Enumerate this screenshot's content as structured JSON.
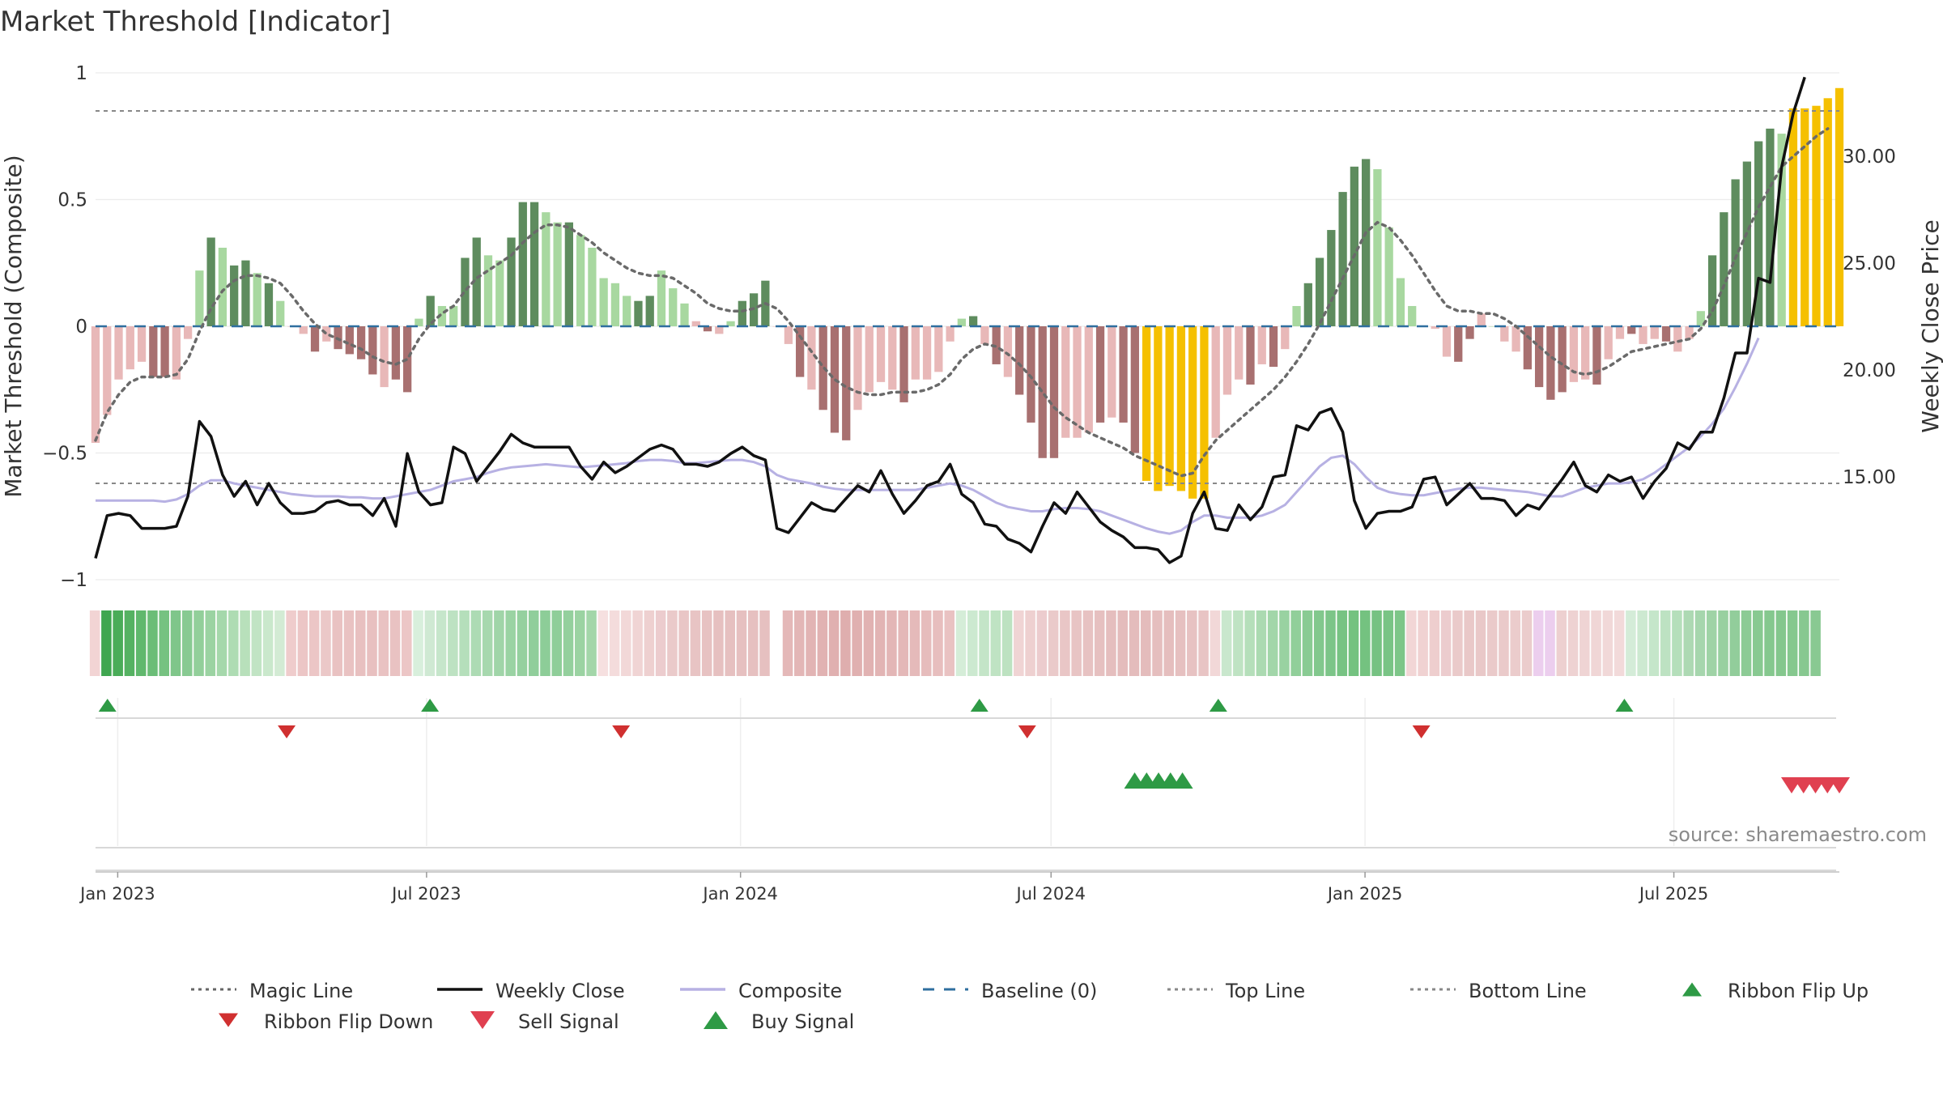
{
  "chart_data": {
    "type": "bar",
    "title": "Market Threshold [Indicator]",
    "ylabel": "Market Threshold (Composite)",
    "ylabel_right": "Weekly Close Price",
    "ylim": [
      -1,
      1
    ],
    "yticks": [
      1,
      0.5,
      0,
      -0.5,
      -1
    ],
    "ytick_labels": [
      "1",
      "0.5",
      "0",
      "−0.5",
      "−1"
    ],
    "ylim_right": [
      10.2,
      33.9
    ],
    "yticks_right": [
      30,
      25,
      20,
      15
    ],
    "ytick_labels_right": [
      "30.00",
      "25.00",
      "20.00",
      "15.00"
    ],
    "x_start": "2022-12-19",
    "x_end": "2025-10-06",
    "xticks": [
      "2023-01-01",
      "2023-07-01",
      "2024-01-01",
      "2024-07-01",
      "2025-01-01",
      "2025-07-01"
    ],
    "xtick_labels": [
      "Jan 2023",
      "Jul 2023",
      "Jan 2024",
      "Jul 2024",
      "Jan 2025",
      "Jul 2025"
    ],
    "top_line": 0.85,
    "bottom_line": -0.62,
    "grid": true,
    "legend_position": "bottom",
    "source_text": "source: sharemaestro.com",
    "legend": [
      {
        "label": "Magic Line",
        "style": "dotted",
        "color": "#666666"
      },
      {
        "label": "Weekly Close",
        "style": "line",
        "color": "#111111"
      },
      {
        "label": "Composite",
        "style": "line",
        "color": "#b7b1e3"
      },
      {
        "label": "Baseline (0)",
        "style": "dashed",
        "color": "#2f6f9f"
      },
      {
        "label": "Top Line",
        "style": "dotted",
        "color": "#888888"
      },
      {
        "label": "Bottom Line",
        "style": "dotted",
        "color": "#888888"
      },
      {
        "label": "Ribbon Flip Up",
        "style": "triangle-up",
        "color": "#2e9a45"
      },
      {
        "label": "Ribbon Flip Down",
        "style": "triangle-down",
        "color": "#d03030"
      },
      {
        "label": "Sell Signal",
        "style": "triangle-down-large",
        "color": "#e04050"
      },
      {
        "label": "Buy Signal",
        "style": "triangle-up-large",
        "color": "#2e9a45"
      }
    ],
    "composite": [
      -0.46,
      -0.35,
      -0.21,
      -0.17,
      -0.14,
      -0.2,
      -0.2,
      -0.21,
      -0.05,
      0.22,
      0.35,
      0.31,
      0.24,
      0.26,
      0.21,
      0.17,
      0.1,
      0.0,
      -0.03,
      -0.1,
      -0.06,
      -0.09,
      -0.11,
      -0.13,
      -0.19,
      -0.24,
      -0.21,
      -0.26,
      0.03,
      0.12,
      0.08,
      0.08,
      0.27,
      0.35,
      0.28,
      0.26,
      0.35,
      0.49,
      0.49,
      0.45,
      0.41,
      0.41,
      0.36,
      0.31,
      0.19,
      0.17,
      0.12,
      0.1,
      0.12,
      0.22,
      0.15,
      0.09,
      0.02,
      -0.02,
      -0.03,
      0.02,
      0.1,
      0.13,
      0.18,
      0.0,
      -0.07,
      -0.2,
      -0.25,
      -0.33,
      -0.42,
      -0.45,
      -0.33,
      -0.26,
      -0.22,
      -0.25,
      -0.3,
      -0.21,
      -0.21,
      -0.18,
      -0.06,
      0.03,
      0.04,
      -0.07,
      -0.15,
      -0.2,
      -0.27,
      -0.38,
      -0.52,
      -0.52,
      -0.44,
      -0.44,
      -0.42,
      -0.38,
      -0.36,
      -0.38,
      -0.5,
      -0.61,
      -0.65,
      -0.63,
      -0.65,
      -0.68,
      -0.68,
      -0.44,
      -0.27,
      -0.21,
      -0.23,
      -0.15,
      -0.16,
      -0.09,
      0.08,
      0.17,
      0.27,
      0.38,
      0.53,
      0.63,
      0.66,
      0.62,
      0.39,
      0.19,
      0.08,
      0.0,
      -0.01,
      -0.12,
      -0.14,
      -0.05,
      0.05,
      0.0,
      -0.06,
      -0.1,
      -0.17,
      -0.24,
      -0.29,
      -0.26,
      -0.22,
      -0.21,
      -0.23,
      -0.13,
      -0.05,
      -0.03,
      -0.07,
      -0.05,
      -0.06,
      -0.1,
      -0.05,
      0.06,
      0.28,
      0.45,
      0.58,
      0.65,
      0.73,
      0.78,
      0.76,
      0.86,
      0.86,
      0.87,
      0.9,
      0.94
    ],
    "bar_colors": [
      "#e8b8b8",
      "#e8b8b8",
      "#e8b8b8",
      "#e8b8b8",
      "#e8b8b8",
      "#a87070",
      "#a87070",
      "#e8b8b8",
      "#e8b8b8",
      "#a8d8a0",
      "#5e8c5e",
      "#a8d8a0",
      "#5e8c5e",
      "#5e8c5e",
      "#a8d8a0",
      "#5e8c5e",
      "#a8d8a0",
      "#e8b8b8",
      "#e8b8b8",
      "#a87070",
      "#e8b8b8",
      "#a87070",
      "#a87070",
      "#a87070",
      "#a87070",
      "#e8b8b8",
      "#a87070",
      "#a87070",
      "#a8d8a0",
      "#5e8c5e",
      "#a8d8a0",
      "#a8d8a0",
      "#5e8c5e",
      "#5e8c5e",
      "#a8d8a0",
      "#a8d8a0",
      "#5e8c5e",
      "#5e8c5e",
      "#5e8c5e",
      "#a8d8a0",
      "#a8d8a0",
      "#5e8c5e",
      "#a8d8a0",
      "#a8d8a0",
      "#a8d8a0",
      "#a8d8a0",
      "#a8d8a0",
      "#5e8c5e",
      "#5e8c5e",
      "#a8d8a0",
      "#a8d8a0",
      "#a8d8a0",
      "#e8b8b8",
      "#a87070",
      "#e8b8b8",
      "#a8d8a0",
      "#5e8c5e",
      "#5e8c5e",
      "#5e8c5e",
      "#e8b8b8",
      "#e8b8b8",
      "#a87070",
      "#e8b8b8",
      "#a87070",
      "#a87070",
      "#a87070",
      "#e8b8b8",
      "#e8b8b8",
      "#e8b8b8",
      "#e8b8b8",
      "#a87070",
      "#e8b8b8",
      "#e8b8b8",
      "#e8b8b8",
      "#e8b8b8",
      "#a8d8a0",
      "#5e8c5e",
      "#e8b8b8",
      "#a87070",
      "#e8b8b8",
      "#a87070",
      "#a87070",
      "#a87070",
      "#a87070",
      "#e8b8b8",
      "#e8b8b8",
      "#e8b8b8",
      "#a87070",
      "#e8b8b8",
      "#a87070",
      "#a87070",
      "#f5c000",
      "#f5c000",
      "#f5c000",
      "#f5c000",
      "#f5c000",
      "#f5c000",
      "#e8b8b8",
      "#e8b8b8",
      "#e8b8b8",
      "#a87070",
      "#e8b8b8",
      "#a87070",
      "#e8b8b8",
      "#a8d8a0",
      "#5e8c5e",
      "#5e8c5e",
      "#5e8c5e",
      "#5e8c5e",
      "#5e8c5e",
      "#5e8c5e",
      "#a8d8a0",
      "#a8d8a0",
      "#a8d8a0",
      "#a8d8a0",
      "#e8b8b8",
      "#e8b8b8",
      "#e8b8b8",
      "#a87070",
      "#a87070",
      "#e8b8b8",
      "#a8d8a0",
      "#e8b8b8",
      "#e8b8b8",
      "#a87070",
      "#a87070",
      "#a87070",
      "#a87070",
      "#e8b8b8",
      "#e8b8b8",
      "#a87070",
      "#e8b8b8",
      "#e8b8b8",
      "#a87070",
      "#e8b8b8",
      "#e8b8b8",
      "#a87070",
      "#e8b8b8",
      "#e8b8b8",
      "#a8d8a0",
      "#5e8c5e",
      "#5e8c5e",
      "#5e8c5e",
      "#5e8c5e",
      "#5e8c5e",
      "#5e8c5e",
      "#a8d8a0",
      "#f5c000",
      "#f5c000",
      "#f5c000",
      "#f5c000",
      "#f5c000"
    ],
    "magic_line": [
      -0.45,
      -0.34,
      -0.27,
      -0.22,
      -0.2,
      -0.2,
      -0.2,
      -0.19,
      -0.13,
      -0.02,
      0.07,
      0.14,
      0.18,
      0.2,
      0.2,
      0.19,
      0.17,
      0.12,
      0.06,
      0.01,
      -0.03,
      -0.05,
      -0.07,
      -0.09,
      -0.12,
      -0.14,
      -0.15,
      -0.13,
      -0.05,
      0.01,
      0.05,
      0.08,
      0.14,
      0.19,
      0.22,
      0.25,
      0.28,
      0.33,
      0.37,
      0.4,
      0.4,
      0.39,
      0.36,
      0.33,
      0.29,
      0.26,
      0.23,
      0.21,
      0.2,
      0.2,
      0.19,
      0.16,
      0.13,
      0.09,
      0.07,
      0.06,
      0.06,
      0.07,
      0.09,
      0.07,
      0.02,
      -0.04,
      -0.1,
      -0.16,
      -0.21,
      -0.24,
      -0.26,
      -0.27,
      -0.27,
      -0.26,
      -0.26,
      -0.26,
      -0.25,
      -0.23,
      -0.19,
      -0.13,
      -0.09,
      -0.07,
      -0.08,
      -0.11,
      -0.15,
      -0.2,
      -0.26,
      -0.32,
      -0.36,
      -0.39,
      -0.42,
      -0.44,
      -0.46,
      -0.48,
      -0.51,
      -0.53,
      -0.55,
      -0.57,
      -0.59,
      -0.58,
      -0.51,
      -0.45,
      -0.41,
      -0.37,
      -0.33,
      -0.29,
      -0.25,
      -0.2,
      -0.14,
      -0.07,
      0.01,
      0.1,
      0.19,
      0.28,
      0.37,
      0.41,
      0.39,
      0.34,
      0.28,
      0.21,
      0.14,
      0.08,
      0.06,
      0.06,
      0.05,
      0.05,
      0.03,
      0.0,
      -0.04,
      -0.08,
      -0.12,
      -0.15,
      -0.18,
      -0.19,
      -0.18,
      -0.16,
      -0.13,
      -0.1,
      -0.09,
      -0.08,
      -0.07,
      -0.06,
      -0.05,
      -0.01,
      0.06,
      0.16,
      0.27,
      0.37,
      0.47,
      0.55,
      0.63,
      0.67,
      0.71,
      0.75,
      0.78
    ],
    "weekly_close": [
      11.2,
      13.2,
      13.3,
      13.2,
      12.6,
      12.6,
      12.6,
      12.7,
      14.1,
      17.6,
      16.9,
      15.1,
      14.1,
      14.8,
      13.7,
      14.7,
      13.8,
      13.3,
      13.3,
      13.4,
      13.8,
      13.9,
      13.7,
      13.7,
      13.2,
      14.0,
      12.7,
      16.1,
      14.3,
      13.7,
      13.8,
      16.4,
      16.1,
      14.8,
      15.5,
      16.2,
      17.0,
      16.6,
      16.4,
      16.4,
      16.4,
      16.4,
      15.5,
      14.9,
      15.7,
      15.2,
      15.5,
      15.9,
      16.3,
      16.5,
      16.3,
      15.6,
      15.6,
      15.5,
      15.7,
      16.1,
      16.4,
      16.0,
      15.8,
      12.6,
      12.4,
      13.1,
      13.8,
      13.5,
      13.4,
      14.0,
      14.6,
      14.3,
      15.3,
      14.2,
      13.3,
      13.9,
      14.6,
      14.8,
      15.6,
      14.2,
      13.8,
      12.8,
      12.7,
      12.1,
      11.9,
      11.5,
      12.7,
      13.8,
      13.3,
      14.3,
      13.6,
      12.9,
      12.5,
      12.2,
      11.7,
      11.7,
      11.6,
      11.0,
      11.3,
      13.3,
      14.3,
      12.6,
      12.5,
      13.7,
      13.0,
      13.6,
      15.0,
      15.1,
      17.4,
      17.2,
      18.0,
      18.2,
      17.1,
      13.9,
      12.6,
      13.3,
      13.4,
      13.4,
      13.6,
      14.9,
      15.0,
      13.7,
      14.2,
      14.7,
      14.0,
      14.0,
      13.9,
      13.2,
      13.7,
      13.5,
      14.2,
      14.9,
      15.7,
      14.6,
      14.3,
      15.1,
      14.8,
      15.0,
      14.0,
      14.8,
      15.4,
      16.6,
      16.3,
      17.1,
      17.1,
      18.7,
      20.8,
      20.8,
      24.3,
      24.1,
      29.5,
      32.0,
      33.7
    ],
    "composite_line": [
      13.9,
      13.9,
      13.9,
      13.9,
      13.9,
      13.9,
      13.85,
      13.95,
      14.2,
      14.6,
      14.85,
      14.85,
      14.7,
      14.6,
      14.5,
      14.4,
      14.3,
      14.2,
      14.15,
      14.1,
      14.1,
      14.1,
      14.05,
      14.05,
      14.0,
      14.0,
      14.1,
      14.2,
      14.3,
      14.4,
      14.6,
      14.8,
      14.9,
      15.0,
      15.2,
      15.35,
      15.45,
      15.5,
      15.55,
      15.6,
      15.55,
      15.5,
      15.45,
      15.5,
      15.55,
      15.6,
      15.65,
      15.75,
      15.8,
      15.8,
      15.75,
      15.65,
      15.65,
      15.7,
      15.75,
      15.8,
      15.8,
      15.7,
      15.5,
      15.1,
      14.9,
      14.8,
      14.7,
      14.55,
      14.45,
      14.4,
      14.4,
      14.4,
      14.4,
      14.4,
      14.4,
      14.4,
      14.5,
      14.6,
      14.7,
      14.6,
      14.4,
      14.1,
      13.8,
      13.6,
      13.5,
      13.4,
      13.4,
      13.5,
      13.55,
      13.55,
      13.5,
      13.4,
      13.2,
      13.0,
      12.8,
      12.6,
      12.45,
      12.35,
      12.5,
      12.9,
      13.2,
      13.2,
      13.1,
      13.1,
      13.1,
      13.2,
      13.4,
      13.7,
      14.3,
      14.9,
      15.5,
      15.9,
      16.0,
      15.6,
      15.0,
      14.5,
      14.3,
      14.2,
      14.15,
      14.15,
      14.25,
      14.35,
      14.45,
      14.5,
      14.5,
      14.45,
      14.4,
      14.35,
      14.3,
      14.2,
      14.1,
      14.1,
      14.3,
      14.5,
      14.6,
      14.7,
      14.7,
      14.75,
      14.9,
      15.2,
      15.6,
      16.0,
      16.4,
      16.9,
      17.5,
      18.2,
      19.2,
      20.3,
      21.5
    ],
    "ribbon_colors": [
      "#f2d4d4",
      "#3fa650",
      "#4aac58",
      "#55b262",
      "#60b86d",
      "#6bbd77",
      "#76c281",
      "#7fc68a",
      "#88ca92",
      "#92cf9a",
      "#9bd3a2",
      "#a5d8ab",
      "#aedcb3",
      "#b8e0bb",
      "#c1e4c4",
      "#cae8cc",
      "#d3ebd4",
      "#efcccc",
      "#ecc6c6",
      "#ecc6c6",
      "#ebc8c8",
      "#e9c2c2",
      "#e9c2c2",
      "#e8c0c0",
      "#e8c0c0",
      "#e9c2c2",
      "#e9c2c2",
      "#ecc6c6",
      "#d8efdc",
      "#cfe9d3",
      "#c6e6cb",
      "#bde2c2",
      "#b5dfbb",
      "#addbb4",
      "#a7d8ae",
      "#a0d5a8",
      "#9ad3a3",
      "#95d09f",
      "#90ce9b",
      "#8dcd98",
      "#8fce99",
      "#94d09d",
      "#9bd3a2",
      "#a3d6a9",
      "#f6e0e0",
      "#f4dcdc",
      "#f2d8d8",
      "#f0d4d4",
      "#eed0d0",
      "#ecccce",
      "#eacaca",
      "#e9c6c6",
      "#e8c4c4",
      "#e7c2c2",
      "#e6c0c0",
      "#e6c0c0",
      "#e6c0c0",
      "#e6c0c0",
      "#e6c0c0",
      "#ffffff",
      "#e4b8b8",
      "#e3b6b6",
      "#e2b4b4",
      "#e1b2b2",
      "#e0b0b0",
      "#dfaeae",
      "#e0b0b0",
      "#e1b2b2",
      "#e2b4b4",
      "#e3b6b6",
      "#e4b8b8",
      "#e5baba",
      "#e6bcbc",
      "#e7bebe",
      "#e9c2c2",
      "#d5edd8",
      "#cce9d0",
      "#c4e5c8",
      "#bfe3c3",
      "#bde2c1",
      "#f0d4d4",
      "#eed0d0",
      "#ecccce",
      "#eacaca",
      "#e9c6c6",
      "#e8c4c4",
      "#e7c2c2",
      "#e6c0c0",
      "#e5bebe",
      "#e4bcbc",
      "#e4bcbc",
      "#e4bcbc",
      "#e5bebe",
      "#e5bebe",
      "#e6c0c0",
      "#e7c2c2",
      "#e8c4c4",
      "#f2d8d8",
      "#c9e7cd",
      "#bfe3c3",
      "#b5dfba",
      "#abdab1",
      "#a2d6a9",
      "#99d2a1",
      "#91cf9a",
      "#89cb93",
      "#82c88d",
      "#7cc588",
      "#77c383",
      "#74c280",
      "#74c280",
      "#76c282",
      "#79c485",
      "#7dc688",
      "#f2d6d6",
      "#f0d2d2",
      "#eecece",
      "#ecccce",
      "#eacaca",
      "#e9c8c8",
      "#e9c8c8",
      "#eacaca",
      "#eacaca",
      "#ebcccc",
      "#ebcccc",
      "#ecceee",
      "#ecceee",
      "#edd0d0",
      "#eed2d2",
      "#efd4d4",
      "#f0d6d6",
      "#f1d8d8",
      "#f2dada",
      "#d4ecd8",
      "#cde9d1",
      "#c5e6ca",
      "#bde2c2",
      "#b5dfbb",
      "#add9b3",
      "#a6d6ad",
      "#9fd3a6",
      "#98d0a0",
      "#92cd9b",
      "#8ccb95",
      "#88c991",
      "#85c88e",
      "#84c78d",
      "#85c88e",
      "#87c890",
      "#89c992"
    ],
    "ribbon_flip_up": [
      "2022-12-26",
      "2023-07-03",
      "2024-05-20",
      "2024-10-07",
      "2025-06-02"
    ],
    "ribbon_flip_down": [
      "2023-04-10",
      "2023-10-23",
      "2024-06-17",
      "2025-02-03"
    ],
    "buy_signals": [
      "2024-08-19",
      "2024-08-26",
      "2024-09-02",
      "2024-09-09",
      "2024-09-16"
    ],
    "sell_signals": [
      "2025-09-08",
      "2025-09-15",
      "2025-09-22",
      "2025-09-29",
      "2025-10-06"
    ]
  }
}
